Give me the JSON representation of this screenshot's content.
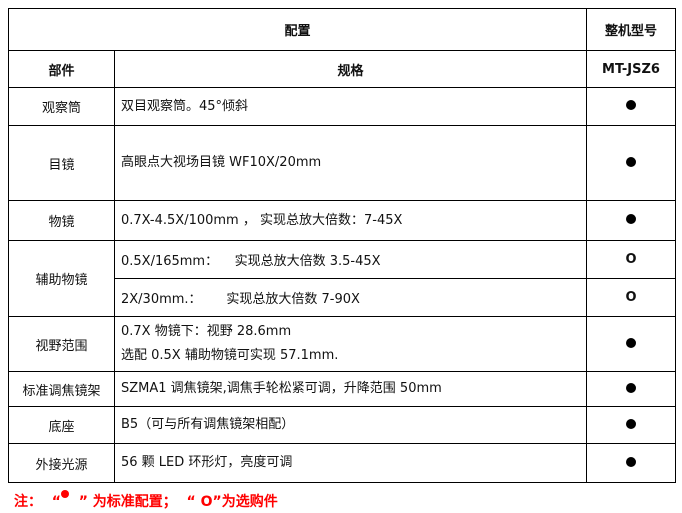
{
  "header": {
    "config": "配置",
    "model_group": "整机型号",
    "part": "部件",
    "spec": "规格",
    "model": "MT-JSZ6"
  },
  "rows": [
    {
      "part": "观察筒",
      "specs": [
        "双目观察筒。45°倾斜"
      ],
      "marks": [
        "standard"
      ]
    },
    {
      "part": "目镜",
      "specs": [
        "高眼点大视场目镜 WF10X/20mm"
      ],
      "marks": [
        "standard"
      ]
    },
    {
      "part": "物镜",
      "specs": [
        "0.7X-4.5X/100mm ， 实现总放大倍数：7-45X"
      ],
      "marks": [
        "standard"
      ]
    },
    {
      "part": "辅助物镜",
      "specs": [
        "0.5X/165mm：    实现总放大倍数 3.5-45X",
        "2X/30mm.：      实现总放大倍数 7-90X"
      ],
      "marks": [
        "optional",
        "optional"
      ]
    },
    {
      "part": "视野范围",
      "specs": [
        "0.7X 物镜下：视野 28.6mm",
        "选配 0.5X 辅助物镜可实现 57.1mm."
      ],
      "marks": [
        "standard"
      ]
    },
    {
      "part": "标准调焦镜架",
      "specs": [
        "SZMA1 调焦镜架,调焦手轮松紧可调，升降范围 50mm"
      ],
      "marks": [
        "standard"
      ]
    },
    {
      "part": "底座",
      "specs": [
        "B5（可与所有调焦镜架相配）"
      ],
      "marks": [
        "standard"
      ]
    },
    {
      "part": "外接光源",
      "specs": [
        "56 颗 LED 环形灯，亮度可调"
      ],
      "marks": [
        "standard"
      ]
    }
  ],
  "optional_symbol": "O",
  "note": {
    "prefix": "注：  “",
    "mid": "  ” 为标准配置；  “ O”为选购件"
  },
  "colors": {
    "note": "#ff0000"
  }
}
